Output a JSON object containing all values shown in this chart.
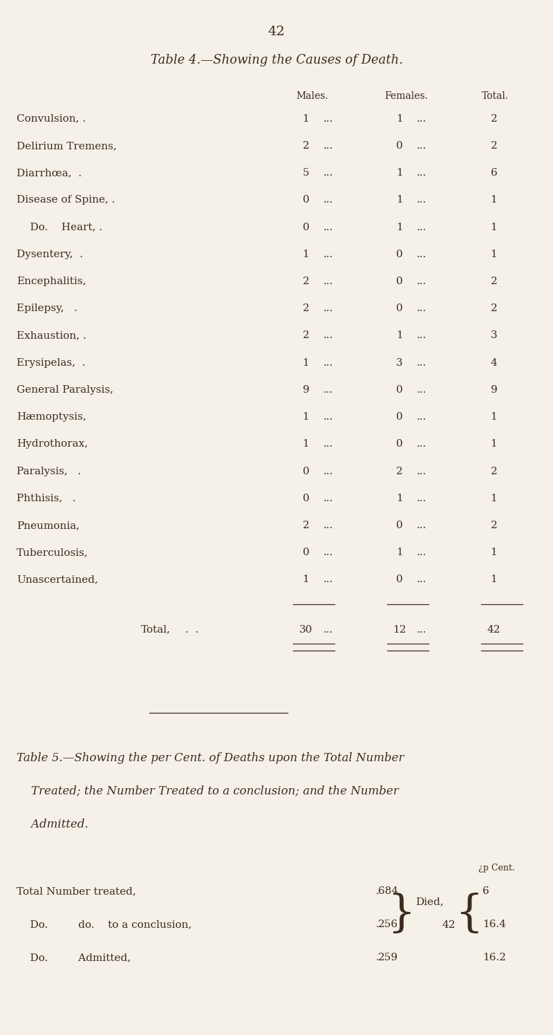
{
  "bg_color": "#f5f0e8",
  "text_color": "#3d2b1f",
  "page_number": "42",
  "table4_title": "Table 4.—Showing the Causes of Death.",
  "col_headers": [
    "Males.",
    "Females.",
    "Total."
  ],
  "rows": [
    {
      "cause": "Convulsion, .",
      "males": 1,
      "females": 1,
      "total": 2
    },
    {
      "cause": "Delirium Tremens,",
      "males": 2,
      "females": 0,
      "total": 2
    },
    {
      "cause": "Diarrhœa,  .",
      "males": 5,
      "females": 1,
      "total": 6
    },
    {
      "cause": "Disease of Spine, .",
      "males": 0,
      "females": 1,
      "total": 1
    },
    {
      "cause": "    Do.    Heart, .",
      "males": 0,
      "females": 1,
      "total": 1
    },
    {
      "cause": "Dysentery,  .",
      "males": 1,
      "females": 0,
      "total": 1
    },
    {
      "cause": "Encephalitis,",
      "males": 2,
      "females": 0,
      "total": 2
    },
    {
      "cause": "Epilepsy,   .",
      "males": 2,
      "females": 0,
      "total": 2
    },
    {
      "cause": "Exhaustion, .",
      "males": 2,
      "females": 1,
      "total": 3
    },
    {
      "cause": "Erysipelas,  .",
      "males": 1,
      "females": 3,
      "total": 4
    },
    {
      "cause": "General Paralysis,",
      "males": 9,
      "females": 0,
      "total": 9
    },
    {
      "cause": "Hæmoptysis,",
      "males": 1,
      "females": 0,
      "total": 1
    },
    {
      "cause": "Hydrothorax,",
      "males": 1,
      "females": 0,
      "total": 1
    },
    {
      "cause": "Paralysis,   .",
      "males": 0,
      "females": 2,
      "total": 2
    },
    {
      "cause": "Phthisis,   .",
      "males": 0,
      "females": 1,
      "total": 1
    },
    {
      "cause": "Pneumonia,",
      "males": 2,
      "females": 0,
      "total": 2
    },
    {
      "cause": "Tuberculosis,",
      "males": 0,
      "females": 1,
      "total": 1
    },
    {
      "cause": "Unascertained,",
      "males": 1,
      "females": 0,
      "total": 1
    }
  ],
  "total_row": {
    "label": "Total,",
    "males": 30,
    "females": 12,
    "total": 42
  },
  "table5_title_lines": [
    "Table 5.—Showing the per Cent. of Deaths upon the Total Number",
    "    Treated; the Number Treated to a conclusion; and the Number",
    "    Admitted."
  ],
  "t5_labels": [
    "Total Number treated,",
    "    Do.         do.    to a conclusion,",
    "    Do.         Admitted,"
  ],
  "t5_dots": [
    "    .    .    .    .",
    "    .",
    "    .    .    .    ."
  ],
  "t5_values": [
    684,
    256,
    259
  ],
  "died_label": "Died,",
  "died_value": "42",
  "pct_cent_label": "¿p Cent.",
  "pct_values": [
    "6",
    "16.4",
    "16.2"
  ]
}
